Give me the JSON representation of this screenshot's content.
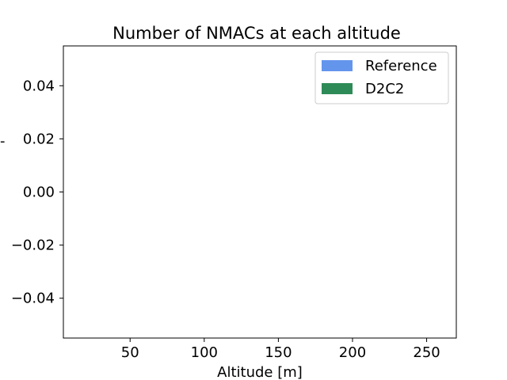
{
  "chart_data": {
    "type": "bar",
    "title": "Number of NMACs at each altitude",
    "xlabel": "Altitude [m]",
    "ylabel": "-",
    "xlim": [
      5,
      270
    ],
    "ylim": [
      -0.055,
      0.055
    ],
    "xticks": [
      50,
      100,
      150,
      200,
      250
    ],
    "xtick_labels": [
      "50",
      "100",
      "150",
      "200",
      "250"
    ],
    "yticks": [
      0.04,
      0.02,
      0.0,
      -0.02,
      -0.04
    ],
    "ytick_labels": [
      "0.04",
      "0.02",
      "0.00",
      "−0.02",
      "−0.04"
    ],
    "grid": false,
    "legend_position": "top-right",
    "series": [
      {
        "name": "Reference",
        "color": "#6495ED",
        "x": [],
        "values": []
      },
      {
        "name": "D2C2",
        "color": "#2E8B57",
        "x": [],
        "values": []
      }
    ]
  }
}
